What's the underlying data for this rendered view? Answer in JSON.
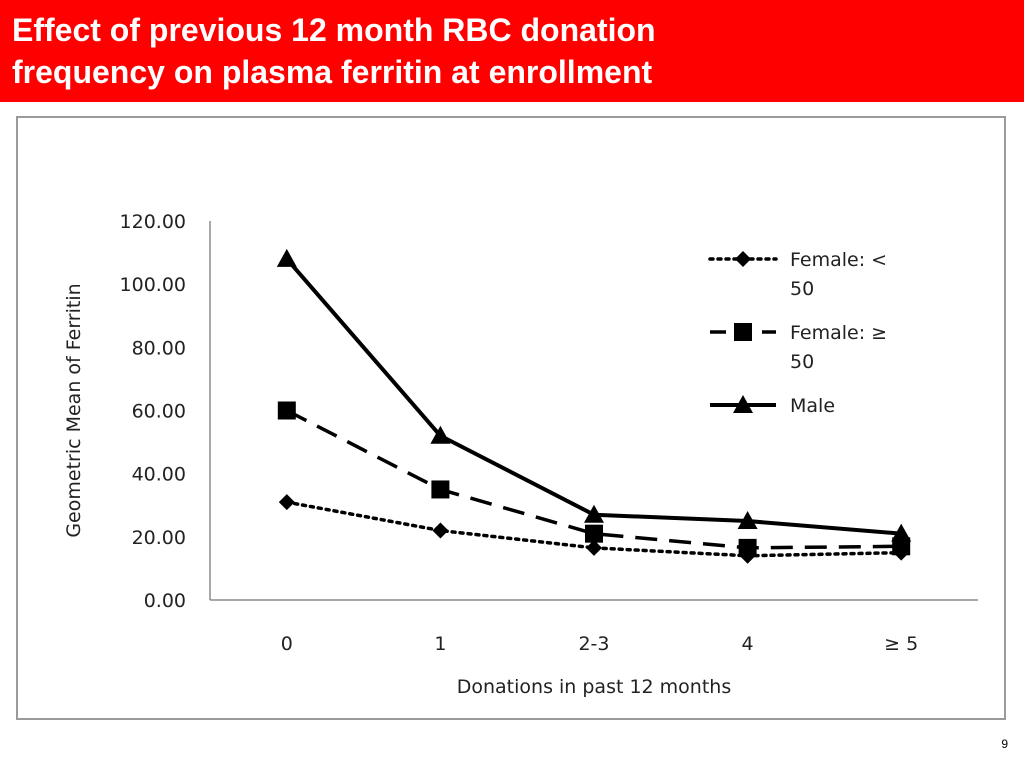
{
  "slide": {
    "title_line1": "Effect of previous 12 month RBC donation",
    "title_line2": "frequency on plasma ferritin at enrollment",
    "page_number": "9",
    "title_bar_color": "#ff0000"
  },
  "chart_data": {
    "type": "line",
    "title": "",
    "xlabel": "Donations in past 12 months",
    "ylabel": "Geometric Mean of Ferritin",
    "categories": [
      "0",
      "1",
      "2-3",
      "4",
      "≥ 5"
    ],
    "ylim": [
      0,
      120
    ],
    "yticks": [
      "0.00",
      "20.00",
      "40.00",
      "60.00",
      "80.00",
      "100.00",
      "120.00"
    ],
    "grid": false,
    "legend_position": "top-right",
    "series": [
      {
        "name": "Female: < 50",
        "legend_line1": "Female: <",
        "legend_line2": "50",
        "values": [
          31,
          22,
          16.5,
          14,
          15
        ],
        "line_style": "dotted",
        "marker": "diamond",
        "color": "#000000"
      },
      {
        "name": "Female: ≥ 50",
        "legend_line1": "Female: ≥",
        "legend_line2": "50",
        "values": [
          60,
          35,
          21,
          16.5,
          17
        ],
        "line_style": "dashed",
        "marker": "square",
        "color": "#000000"
      },
      {
        "name": "Male",
        "legend_line1": "Male",
        "legend_line2": "",
        "values": [
          108,
          52,
          27,
          25,
          21
        ],
        "line_style": "solid",
        "marker": "triangle",
        "color": "#000000"
      }
    ]
  }
}
